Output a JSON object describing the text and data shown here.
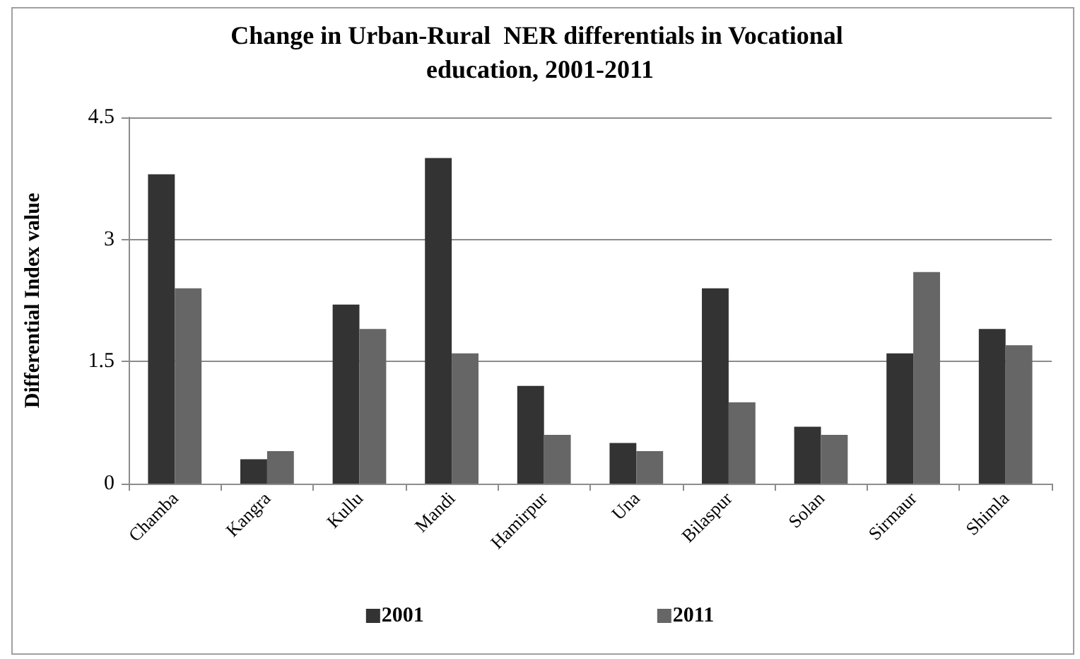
{
  "chart_data": {
    "type": "bar",
    "title": "Change in Urban-Rural  NER differentials in Vocational education, 2001-2011",
    "ylabel": "Differential Index value",
    "categories": [
      "Chamba",
      "Kangra",
      "Kullu",
      "Mandi",
      "Hamirpur",
      "Una",
      "Bilaspur",
      "Solan",
      "Sirmaur",
      "Shimla"
    ],
    "series": [
      {
        "name": "2001",
        "color": "#333333",
        "values": [
          3.8,
          0.3,
          2.2,
          4.0,
          1.2,
          0.5,
          2.4,
          0.7,
          1.6,
          1.9
        ]
      },
      {
        "name": "2011",
        "color": "#666666",
        "values": [
          2.4,
          0.4,
          1.9,
          1.6,
          0.6,
          0.4,
          1.0,
          0.6,
          2.6,
          1.7
        ]
      }
    ],
    "ylim": [
      0,
      4.5
    ],
    "yticks": [
      0,
      1.5,
      3,
      4.5
    ],
    "grid": "y",
    "legend": "bottom"
  }
}
